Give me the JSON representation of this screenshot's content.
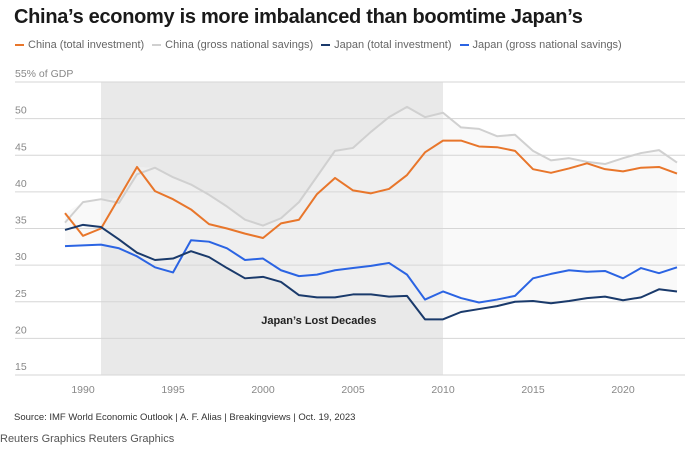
{
  "chart_data": {
    "type": "line",
    "title": "China’s economy is more imbalanced than boomtime Japan’s",
    "ylabel": "% of GDP",
    "y_top_label": "55% of GDP",
    "ylim": [
      15,
      55
    ],
    "yticks": [
      15,
      20,
      25,
      30,
      35,
      40,
      45,
      50,
      55
    ],
    "xlim": [
      1987.5,
      2023.5
    ],
    "xticks": [
      1990,
      1995,
      2000,
      2005,
      2010,
      2015,
      2020
    ],
    "grid": true,
    "legend_position": "top",
    "x": [
      1989,
      1990,
      1991,
      1992,
      1993,
      1994,
      1995,
      1996,
      1997,
      1998,
      1999,
      2000,
      2001,
      2002,
      2003,
      2004,
      2005,
      2006,
      2007,
      2008,
      2009,
      2010,
      2011,
      2012,
      2013,
      2014,
      2015,
      2016,
      2017,
      2018,
      2019,
      2020,
      2021,
      2022,
      2023
    ],
    "series": [
      {
        "name": "China (total investment)",
        "color": "#e8762b",
        "values": [
          37.1,
          34.0,
          35.0,
          39.2,
          43.4,
          40.1,
          39.0,
          37.6,
          35.6,
          35.0,
          34.3,
          33.7,
          35.7,
          36.2,
          39.7,
          41.9,
          40.2,
          39.8,
          40.4,
          42.3,
          45.4,
          47.0,
          47.0,
          46.2,
          46.1,
          45.6,
          43.1,
          42.6,
          43.2,
          43.9,
          43.1,
          42.8,
          43.3,
          43.4,
          42.5
        ]
      },
      {
        "name": "China (gross national savings)",
        "color": "#d0d0d0",
        "values": [
          35.8,
          38.6,
          39.0,
          38.5,
          42.4,
          43.3,
          42.0,
          41.0,
          39.6,
          38.0,
          36.2,
          35.4,
          36.4,
          38.6,
          42.1,
          45.6,
          46.0,
          48.2,
          50.2,
          51.6,
          50.2,
          50.8,
          48.8,
          48.6,
          47.6,
          47.8,
          45.6,
          44.3,
          44.6,
          44.1,
          43.8,
          44.6,
          45.3,
          45.7,
          44.0
        ]
      },
      {
        "name": "Japan (total investment)",
        "color": "#1a3a6b",
        "values": [
          34.8,
          35.5,
          35.2,
          33.5,
          31.7,
          30.7,
          30.9,
          31.9,
          31.1,
          29.6,
          28.2,
          28.4,
          27.7,
          25.9,
          25.6,
          25.6,
          26.0,
          26.0,
          25.7,
          25.8,
          22.6,
          22.6,
          23.6,
          24.0,
          24.4,
          25.0,
          25.1,
          24.8,
          25.1,
          25.5,
          25.7,
          25.2,
          25.6,
          26.7,
          26.4
        ]
      },
      {
        "name": "Japan (gross national savings)",
        "color": "#2b64e3",
        "values": [
          32.6,
          32.7,
          32.8,
          32.3,
          31.2,
          29.7,
          29.0,
          33.4,
          33.2,
          32.3,
          30.7,
          30.9,
          29.3,
          28.5,
          28.7,
          29.3,
          29.6,
          29.9,
          30.3,
          28.7,
          25.3,
          26.4,
          25.5,
          24.9,
          25.3,
          25.8,
          28.2,
          28.8,
          29.3,
          29.1,
          29.2,
          28.2,
          29.6,
          28.9,
          29.7
        ]
      }
    ],
    "shaded_region": {
      "from": 1991,
      "to": 2010,
      "label": "Japan’s Lost Decades"
    },
    "band_fill_color": "#f4f4f4",
    "shade_color": "#e9e9e9"
  },
  "source": "Source: IMF World Economic Outlook | A. F. Alias | Breakingviews | Oct. 19, 2023",
  "credit": "Reuters Graphics Reuters Graphics"
}
